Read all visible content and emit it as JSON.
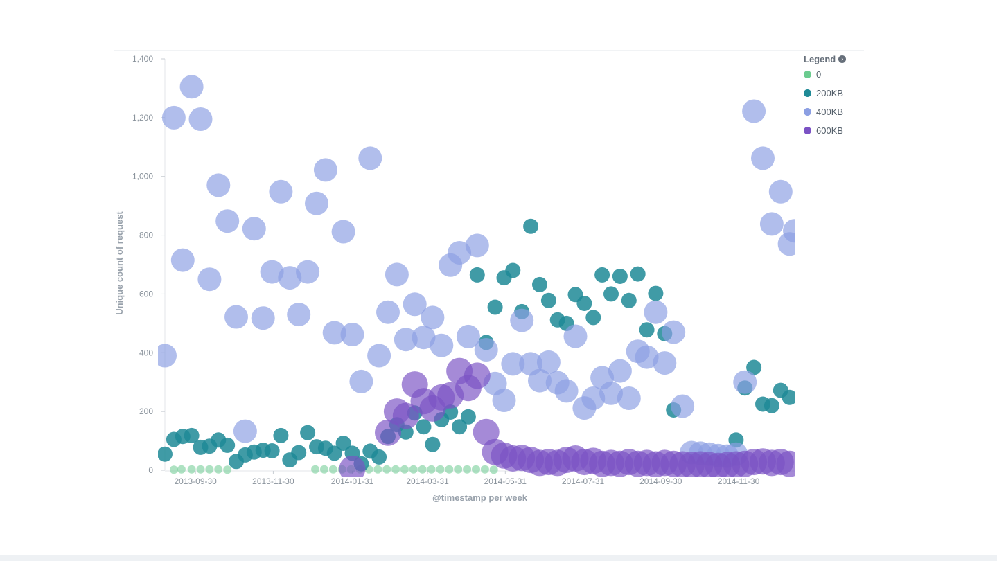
{
  "legend": {
    "title": "Legend",
    "items": [
      {
        "label": "0",
        "color": "#6bcb8f"
      },
      {
        "label": "200KB",
        "color": "#1f8a96"
      },
      {
        "label": "400KB",
        "color": "#8c9fe3"
      },
      {
        "label": "600KB",
        "color": "#7b52c4"
      }
    ]
  },
  "chart_data": {
    "type": "scatter",
    "xlabel": "@timestamp per week",
    "ylabel": "Unique count of request",
    "ylim": [
      0,
      1400
    ],
    "xlim": [
      "2013-09-06",
      "2015-01-13"
    ],
    "y_ticks": [
      "0",
      "200",
      "400",
      "600",
      "800",
      "1,000",
      "1,200",
      "1,400"
    ],
    "x_ticks": [
      "2013-09-30",
      "2013-11-30",
      "2014-01-31",
      "2014-03-31",
      "2014-05-31",
      "2014-07-31",
      "2014-09-30",
      "2014-11-30"
    ],
    "x_tick_dates": [
      "2013-09-30",
      "2013-11-30",
      "2014-01-31",
      "2014-03-31",
      "2014-05-31",
      "2014-07-31",
      "2014-09-30",
      "2014-11-30"
    ],
    "grid": false,
    "legend_position": "top-right",
    "series": [
      {
        "name": "0",
        "color": "#6bcb8f",
        "opacity": 0.55,
        "radius": 6,
        "points": [
          [
            "2013-09-13",
            2
          ],
          [
            "2013-09-19",
            3
          ],
          [
            "2013-09-27",
            3
          ],
          [
            "2013-10-04",
            3
          ],
          [
            "2013-10-11",
            3
          ],
          [
            "2013-10-18",
            3
          ],
          [
            "2013-10-25",
            2
          ],
          [
            "2014-01-02",
            3
          ],
          [
            "2014-01-09",
            3
          ],
          [
            "2014-01-16",
            3
          ],
          [
            "2014-01-23",
            3
          ],
          [
            "2014-01-30",
            3
          ],
          [
            "2014-02-06",
            3
          ],
          [
            "2014-02-13",
            3
          ],
          [
            "2014-02-20",
            3
          ],
          [
            "2014-02-27",
            3
          ],
          [
            "2014-03-06",
            3
          ],
          [
            "2014-03-13",
            3
          ],
          [
            "2014-03-20",
            3
          ],
          [
            "2014-03-27",
            3
          ],
          [
            "2014-04-03",
            3
          ],
          [
            "2014-04-10",
            3
          ],
          [
            "2014-04-17",
            3
          ],
          [
            "2014-04-24",
            3
          ],
          [
            "2014-05-01",
            3
          ],
          [
            "2014-05-08",
            3
          ],
          [
            "2014-05-15",
            3
          ],
          [
            "2014-05-22",
            2
          ]
        ]
      },
      {
        "name": "200KB",
        "color": "#1f8a96",
        "opacity": 0.85,
        "radius": 11,
        "points": [
          [
            "2013-09-06",
            55
          ],
          [
            "2013-09-13",
            105
          ],
          [
            "2013-09-20",
            115
          ],
          [
            "2013-09-27",
            118
          ],
          [
            "2013-10-04",
            78
          ],
          [
            "2013-10-11",
            82
          ],
          [
            "2013-10-18",
            103
          ],
          [
            "2013-10-25",
            85
          ],
          [
            "2013-11-01",
            30
          ],
          [
            "2013-11-08",
            52
          ],
          [
            "2013-11-15",
            62
          ],
          [
            "2013-11-22",
            68
          ],
          [
            "2013-11-29",
            66
          ],
          [
            "2013-12-06",
            118
          ],
          [
            "2013-12-13",
            35
          ],
          [
            "2013-12-20",
            60
          ],
          [
            "2013-12-27",
            128
          ],
          [
            "2014-01-03",
            80
          ],
          [
            "2014-01-10",
            75
          ],
          [
            "2014-01-17",
            58
          ],
          [
            "2014-01-24",
            92
          ],
          [
            "2014-01-31",
            58
          ],
          [
            "2014-02-07",
            22
          ],
          [
            "2014-02-14",
            65
          ],
          [
            "2014-02-21",
            45
          ],
          [
            "2014-02-28",
            115
          ],
          [
            "2014-03-07",
            155
          ],
          [
            "2014-03-14",
            130
          ],
          [
            "2014-03-21",
            195
          ],
          [
            "2014-03-28",
            148
          ],
          [
            "2014-04-04",
            88
          ],
          [
            "2014-04-11",
            172
          ],
          [
            "2014-04-18",
            198
          ],
          [
            "2014-04-25",
            148
          ],
          [
            "2014-05-02",
            182
          ],
          [
            "2014-05-09",
            665
          ],
          [
            "2014-05-16",
            435
          ],
          [
            "2014-05-23",
            555
          ],
          [
            "2014-05-30",
            655
          ],
          [
            "2014-06-06",
            680
          ],
          [
            "2014-06-13",
            540
          ],
          [
            "2014-06-20",
            830
          ],
          [
            "2014-06-27",
            632
          ],
          [
            "2014-07-04",
            578
          ],
          [
            "2014-07-11",
            512
          ],
          [
            "2014-07-18",
            500
          ],
          [
            "2014-07-25",
            598
          ],
          [
            "2014-08-01",
            568
          ],
          [
            "2014-08-08",
            520
          ],
          [
            "2014-08-15",
            665
          ],
          [
            "2014-08-22",
            600
          ],
          [
            "2014-08-29",
            660
          ],
          [
            "2014-09-05",
            578
          ],
          [
            "2014-09-12",
            668
          ],
          [
            "2014-09-19",
            478
          ],
          [
            "2014-09-26",
            602
          ],
          [
            "2014-10-03",
            465
          ],
          [
            "2014-10-10",
            205
          ],
          [
            "2014-11-28",
            103
          ],
          [
            "2014-12-05",
            280
          ],
          [
            "2014-12-12",
            350
          ],
          [
            "2014-12-19",
            225
          ],
          [
            "2014-12-26",
            220
          ],
          [
            "2015-01-02",
            272
          ],
          [
            "2015-01-09",
            248
          ]
        ]
      },
      {
        "name": "400KB",
        "color": "#8c9fe3",
        "opacity": 0.68,
        "radius": 17,
        "points": [
          [
            "2013-09-06",
            390
          ],
          [
            "2013-09-13",
            1200
          ],
          [
            "2013-09-20",
            715
          ],
          [
            "2013-09-27",
            1305
          ],
          [
            "2013-10-04",
            1195
          ],
          [
            "2013-10-11",
            650
          ],
          [
            "2013-10-18",
            970
          ],
          [
            "2013-10-25",
            848
          ],
          [
            "2013-11-01",
            522
          ],
          [
            "2013-11-08",
            133
          ],
          [
            "2013-11-15",
            822
          ],
          [
            "2013-11-22",
            518
          ],
          [
            "2013-11-29",
            675
          ],
          [
            "2013-12-06",
            948
          ],
          [
            "2013-12-13",
            655
          ],
          [
            "2013-12-20",
            530
          ],
          [
            "2013-12-27",
            675
          ],
          [
            "2014-01-03",
            908
          ],
          [
            "2014-01-10",
            1022
          ],
          [
            "2014-01-17",
            468
          ],
          [
            "2014-01-24",
            812
          ],
          [
            "2014-01-31",
            462
          ],
          [
            "2014-02-07",
            302
          ],
          [
            "2014-02-14",
            1062
          ],
          [
            "2014-02-21",
            390
          ],
          [
            "2014-02-28",
            538
          ],
          [
            "2014-03-07",
            666
          ],
          [
            "2014-03-14",
            445
          ],
          [
            "2014-03-21",
            565
          ],
          [
            "2014-03-28",
            452
          ],
          [
            "2014-04-04",
            520
          ],
          [
            "2014-04-11",
            425
          ],
          [
            "2014-04-18",
            698
          ],
          [
            "2014-04-25",
            740
          ],
          [
            "2014-05-02",
            455
          ],
          [
            "2014-05-09",
            765
          ],
          [
            "2014-05-16",
            410
          ],
          [
            "2014-05-23",
            295
          ],
          [
            "2014-05-30",
            238
          ],
          [
            "2014-06-06",
            362
          ],
          [
            "2014-06-13",
            510
          ],
          [
            "2014-06-20",
            362
          ],
          [
            "2014-06-27",
            305
          ],
          [
            "2014-07-04",
            368
          ],
          [
            "2014-07-11",
            298
          ],
          [
            "2014-07-18",
            270
          ],
          [
            "2014-07-25",
            456
          ],
          [
            "2014-08-01",
            212
          ],
          [
            "2014-08-08",
            245
          ],
          [
            "2014-08-15",
            315
          ],
          [
            "2014-08-22",
            262
          ],
          [
            "2014-08-29",
            338
          ],
          [
            "2014-09-05",
            245
          ],
          [
            "2014-09-12",
            405
          ],
          [
            "2014-09-19",
            385
          ],
          [
            "2014-09-26",
            538
          ],
          [
            "2014-10-03",
            365
          ],
          [
            "2014-10-10",
            470
          ],
          [
            "2014-10-17",
            218
          ],
          [
            "2014-10-24",
            60
          ],
          [
            "2014-10-31",
            58
          ],
          [
            "2014-11-07",
            55
          ],
          [
            "2014-11-14",
            50
          ],
          [
            "2014-11-21",
            48
          ],
          [
            "2014-11-28",
            55
          ],
          [
            "2014-12-05",
            300
          ],
          [
            "2014-12-12",
            1222
          ],
          [
            "2014-12-19",
            1062
          ],
          [
            "2014-12-26",
            838
          ],
          [
            "2015-01-02",
            948
          ],
          [
            "2015-01-09",
            770
          ],
          [
            "2015-01-13",
            815
          ]
        ]
      },
      {
        "name": "600KB",
        "color": "#7b52c4",
        "opacity": 0.68,
        "radius": 19,
        "points": [
          [
            "2014-01-31",
            5
          ],
          [
            "2014-02-28",
            128
          ],
          [
            "2014-03-07",
            200
          ],
          [
            "2014-03-14",
            185
          ],
          [
            "2014-03-21",
            292
          ],
          [
            "2014-03-28",
            235
          ],
          [
            "2014-04-04",
            210
          ],
          [
            "2014-04-11",
            248
          ],
          [
            "2014-04-18",
            255
          ],
          [
            "2014-04-25",
            338
          ],
          [
            "2014-05-02",
            280
          ],
          [
            "2014-05-09",
            322
          ],
          [
            "2014-05-16",
            130
          ],
          [
            "2014-05-23",
            62
          ],
          [
            "2014-05-30",
            50
          ],
          [
            "2014-06-06",
            40
          ],
          [
            "2014-06-13",
            42
          ],
          [
            "2014-06-20",
            35
          ],
          [
            "2014-06-27",
            25
          ],
          [
            "2014-07-04",
            28
          ],
          [
            "2014-07-11",
            25
          ],
          [
            "2014-07-18",
            35
          ],
          [
            "2014-07-25",
            40
          ],
          [
            "2014-08-01",
            28
          ],
          [
            "2014-08-08",
            32
          ],
          [
            "2014-08-15",
            22
          ],
          [
            "2014-08-22",
            25
          ],
          [
            "2014-08-29",
            22
          ],
          [
            "2014-09-05",
            28
          ],
          [
            "2014-09-12",
            22
          ],
          [
            "2014-09-19",
            25
          ],
          [
            "2014-09-26",
            20
          ],
          [
            "2014-10-03",
            25
          ],
          [
            "2014-10-10",
            22
          ],
          [
            "2014-10-17",
            20
          ],
          [
            "2014-10-24",
            18
          ],
          [
            "2014-10-31",
            20
          ],
          [
            "2014-11-07",
            18
          ],
          [
            "2014-11-14",
            15
          ],
          [
            "2014-11-21",
            18
          ],
          [
            "2014-11-28",
            20
          ],
          [
            "2014-12-05",
            22
          ],
          [
            "2014-12-12",
            28
          ],
          [
            "2014-12-19",
            30
          ],
          [
            "2014-12-26",
            25
          ],
          [
            "2015-01-02",
            28
          ],
          [
            "2015-01-09",
            22
          ]
        ]
      }
    ]
  }
}
